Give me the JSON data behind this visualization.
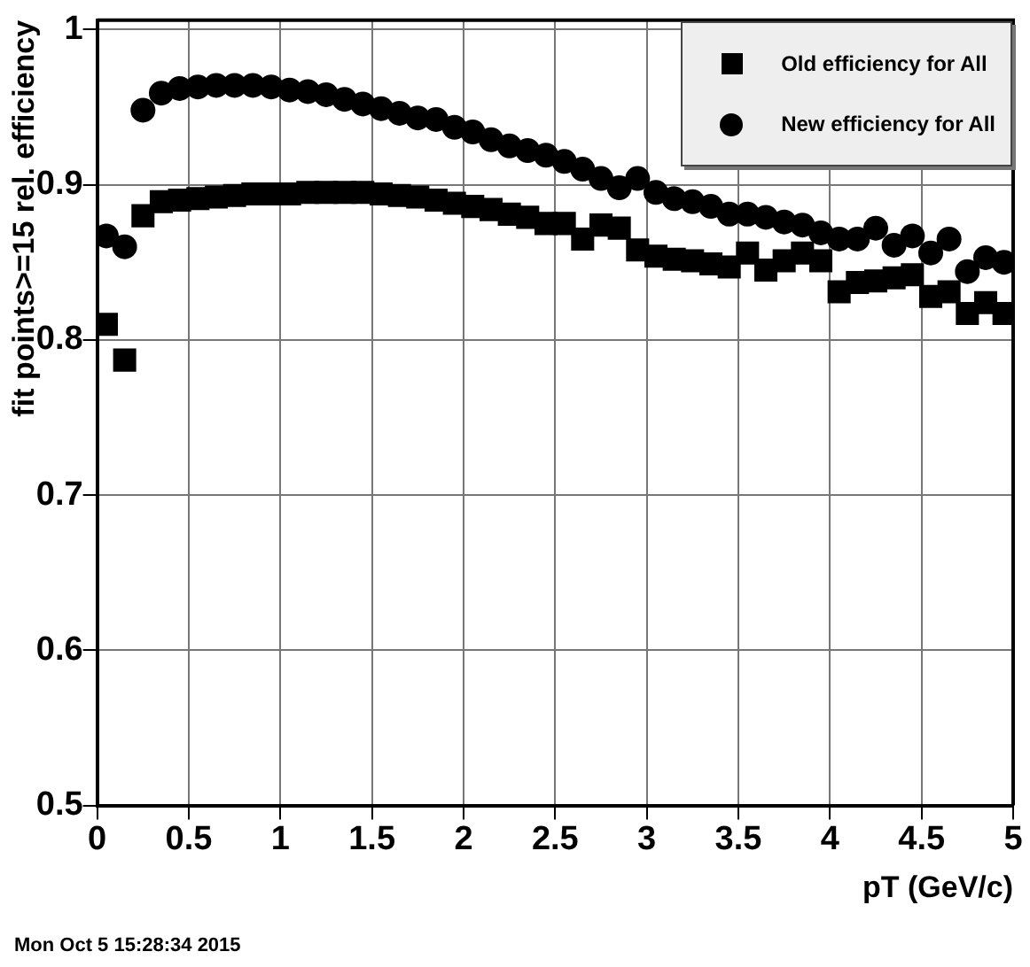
{
  "chart_data": {
    "type": "scatter",
    "xlabel": "pT (GeV/c)",
    "ylabel": "fit points>=15 rel. efficiency",
    "annotations": [
      "Mon Oct 5 15:28:34 2015"
    ],
    "x": [
      0.05,
      0.15,
      0.25,
      0.35,
      0.45,
      0.55,
      0.65,
      0.75,
      0.85,
      0.95,
      1.05,
      1.15,
      1.25,
      1.35,
      1.45,
      1.55,
      1.65,
      1.75,
      1.85,
      1.95,
      2.05,
      2.15,
      2.25,
      2.35,
      2.45,
      2.55,
      2.65,
      2.75,
      2.85,
      2.95,
      3.05,
      3.15,
      3.25,
      3.35,
      3.45,
      3.55,
      3.65,
      3.75,
      3.85,
      3.95,
      4.05,
      4.15,
      4.25,
      4.35,
      4.45,
      4.55,
      4.65,
      4.75,
      4.85,
      4.95
    ],
    "series": [
      {
        "name": "Old efficiency for All",
        "color": "#000000",
        "marker": "square",
        "values": [
          0.81,
          0.787,
          0.88,
          0.889,
          0.89,
          0.891,
          0.892,
          0.893,
          0.894,
          0.894,
          0.894,
          0.895,
          0.895,
          0.895,
          0.895,
          0.894,
          0.893,
          0.892,
          0.89,
          0.888,
          0.886,
          0.884,
          0.881,
          0.879,
          0.875,
          0.875,
          0.865,
          0.874,
          0.872,
          0.858,
          0.854,
          0.852,
          0.851,
          0.849,
          0.847,
          0.856,
          0.845,
          0.851,
          0.856,
          0.851,
          0.831,
          0.837,
          0.838,
          0.84,
          0.842,
          0.828,
          0.831,
          0.817,
          0.824,
          0.817
        ]
      },
      {
        "name": "New efficiency for All",
        "color": "#000000",
        "marker": "circle",
        "values": [
          0.867,
          0.86,
          0.948,
          0.959,
          0.962,
          0.963,
          0.964,
          0.964,
          0.964,
          0.963,
          0.961,
          0.96,
          0.958,
          0.955,
          0.952,
          0.949,
          0.946,
          0.943,
          0.942,
          0.937,
          0.934,
          0.929,
          0.925,
          0.922,
          0.919,
          0.915,
          0.91,
          0.904,
          0.898,
          0.904,
          0.895,
          0.891,
          0.889,
          0.886,
          0.881,
          0.881,
          0.879,
          0.876,
          0.874,
          0.869,
          0.865,
          0.865,
          0.872,
          0.861,
          0.867,
          0.856,
          0.865,
          0.844,
          0.853,
          0.85
        ]
      }
    ],
    "xlim": [
      0,
      5
    ],
    "xticks": [
      0,
      0.5,
      1,
      1.5,
      2,
      2.5,
      3,
      3.5,
      4,
      4.5,
      5
    ],
    "ylim": [
      0.5,
      1.006
    ],
    "yticks": [
      0.5,
      0.6,
      0.7,
      0.8,
      0.9,
      1
    ],
    "grid": true,
    "legend": "top right"
  }
}
